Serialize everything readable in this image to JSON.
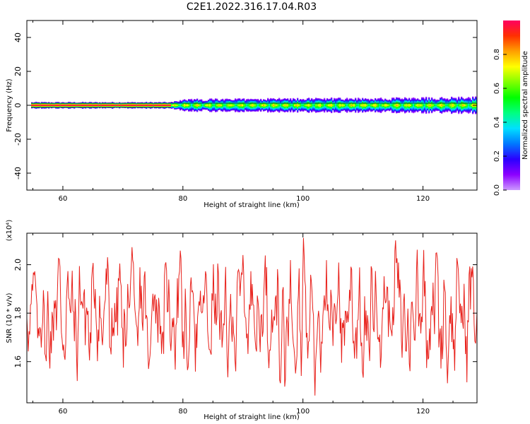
{
  "title": "C2E1.2022.316.17.04.R03",
  "chart_data": [
    {
      "type": "heatmap",
      "xlabel": "Height of straight line (km)",
      "ylabel": "Frequency (Hz)",
      "xlim": [
        54,
        129
      ],
      "ylim": [
        -50,
        50
      ],
      "x_ticks": [
        60,
        80,
        100,
        120
      ],
      "y_ticks": [
        -40,
        -20,
        0,
        20,
        40
      ],
      "band_center_hz": 0,
      "band_halfwidth_hz": [
        [
          54,
          1.5
        ],
        [
          78,
          1.5
        ],
        [
          80,
          3
        ],
        [
          128,
          4
        ]
      ],
      "colorbar": {
        "label": "Normalized spectral amplitude",
        "range": [
          0,
          1
        ],
        "ticks": [
          0.0,
          0.2,
          0.4,
          0.6,
          0.8
        ],
        "colormap": [
          "#cc99ff",
          "#8c00ff",
          "#2b00ff",
          "#0078ff",
          "#00e0ff",
          "#00ff80",
          "#00ff00",
          "#80ff00",
          "#ffff00",
          "#ffa000",
          "#ff3000",
          "#ff0060"
        ]
      }
    },
    {
      "type": "line",
      "xlabel": "Height of straight line (km)",
      "ylabel": "SNR (10 * v/v)",
      "y_scale_label": "(x10⁴)",
      "xlim": [
        54,
        129
      ],
      "ylim": [
        1.43,
        2.13
      ],
      "x_ticks": [
        60,
        80,
        100,
        120
      ],
      "y_ticks": [
        1.6,
        1.8,
        2.0
      ],
      "color": "#e8201a",
      "noise_baseline": 1.8,
      "notable_points": [
        {
          "x": 55.5,
          "y": 1.92
        },
        {
          "x": 57.2,
          "y": 1.55
        },
        {
          "x": 59.3,
          "y": 2.03
        },
        {
          "x": 71.5,
          "y": 2.08
        },
        {
          "x": 74.3,
          "y": 1.56
        },
        {
          "x": 79.6,
          "y": 2.06
        },
        {
          "x": 80.8,
          "y": 1.53
        },
        {
          "x": 87.5,
          "y": 1.52
        },
        {
          "x": 90.0,
          "y": 2.04
        },
        {
          "x": 96.2,
          "y": 1.47
        },
        {
          "x": 96.8,
          "y": 2.13
        },
        {
          "x": 97.0,
          "y": 1.43
        },
        {
          "x": 100.1,
          "y": 2.13
        },
        {
          "x": 99.8,
          "y": 1.48
        },
        {
          "x": 102.0,
          "y": 1.46
        },
        {
          "x": 110.0,
          "y": 1.47
        },
        {
          "x": 115.4,
          "y": 2.13
        },
        {
          "x": 117.8,
          "y": 1.53
        },
        {
          "x": 119.0,
          "y": 2.12
        },
        {
          "x": 118.9,
          "y": 1.47
        },
        {
          "x": 122.3,
          "y": 2.06
        },
        {
          "x": 124.1,
          "y": 1.49
        },
        {
          "x": 128.3,
          "y": 2.0
        },
        {
          "x": 128.7,
          "y": 1.68
        }
      ]
    }
  ]
}
